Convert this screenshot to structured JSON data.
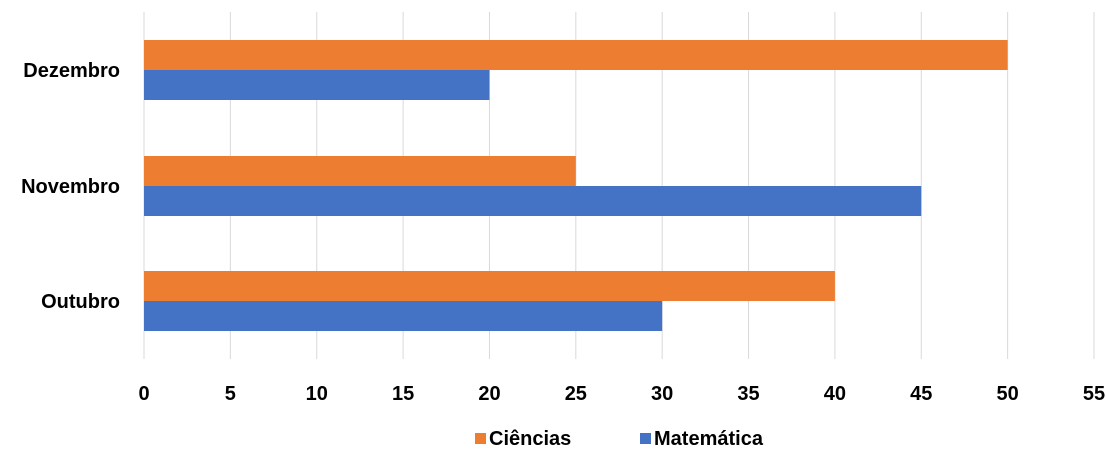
{
  "chart_data": {
    "type": "bar",
    "orientation": "horizontal",
    "categories": [
      "Outubro",
      "Novembro",
      "Dezembro"
    ],
    "series": [
      {
        "name": "Ciências",
        "color": "#ED7D31",
        "values": [
          40,
          25,
          50
        ]
      },
      {
        "name": "Matemática",
        "color": "#4472C4",
        "values": [
          30,
          45,
          20
        ]
      }
    ],
    "xlim": [
      0,
      55
    ],
    "x_ticks": [
      "0",
      "5",
      "10",
      "15",
      "20",
      "25",
      "30",
      "35",
      "40",
      "45",
      "50",
      "55"
    ],
    "grid": true,
    "legend_position": "bottom",
    "title": "",
    "xlabel": "",
    "ylabel": ""
  }
}
